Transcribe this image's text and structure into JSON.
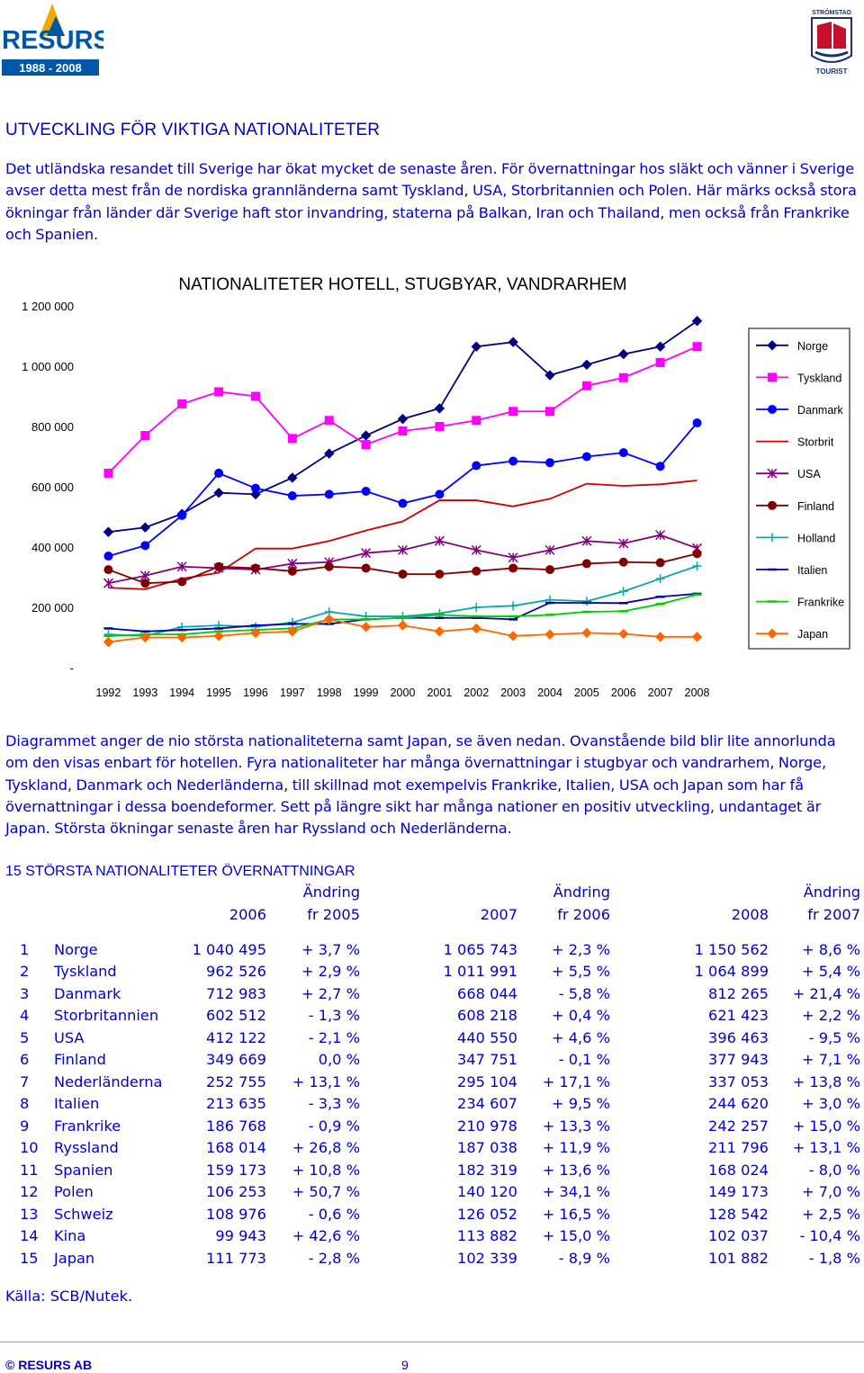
{
  "header": {
    "logo_word": "RESURS",
    "logo_years": "1988 - 2008",
    "right_logo_top": "STRÖMSTAD",
    "right_logo_bottom": "TOURIST"
  },
  "section_title": "UTVECKLING FÖR VIKTIGA NATIONALITETER",
  "intro_text": "Det utländska resandet till Sverige har ökat mycket de senaste åren. För övernattningar hos släkt och vänner i Sverige avser detta mest från de nordiska grannländerna samt Tyskland, USA, Storbritannien och Polen. Här märks också stora ökningar från länder där Sverige haft stor invandring, staterna på Balkan, Iran och Thailand, men också från Frankrike och Spanien.",
  "chart_data": {
    "type": "line",
    "title": "NATIONALITETER HOTELL, STUGBYAR, VANDRARHEM",
    "xlabel": "",
    "ylabel": "",
    "x": [
      "1992",
      "1993",
      "1994",
      "1995",
      "1996",
      "1997",
      "1998",
      "1999",
      "2000",
      "2001",
      "2002",
      "2003",
      "2004",
      "2005",
      "2006",
      "2007",
      "2008"
    ],
    "ylim": [
      0,
      1200000
    ],
    "yticks": [
      0,
      200000,
      400000,
      600000,
      800000,
      1000000,
      1200000
    ],
    "ytick_labels": [
      "-",
      "200 000",
      "400 000",
      "600 000",
      "800 000",
      "1 000 000",
      "1 200 000"
    ],
    "legend_position": "right",
    "series": [
      {
        "name": "Norge",
        "color": "#000080",
        "marker": "diamond",
        "values": [
          450000,
          465000,
          510000,
          580000,
          575000,
          630000,
          710000,
          770000,
          825000,
          860000,
          1065000,
          1080000,
          970000,
          1005000,
          1040000,
          1065000,
          1150000
        ]
      },
      {
        "name": "Tyskland",
        "color": "#ff00ff",
        "marker": "square",
        "values": [
          645000,
          770000,
          875000,
          915000,
          900000,
          760000,
          820000,
          740000,
          785000,
          800000,
          820000,
          850000,
          850000,
          935000,
          962000,
          1012000,
          1065000
        ]
      },
      {
        "name": "Danmark",
        "color": "#0000ff",
        "marker": "triangle",
        "values": [
          370000,
          405000,
          505000,
          645000,
          595000,
          570000,
          575000,
          585000,
          545000,
          575000,
          670000,
          685000,
          680000,
          700000,
          713000,
          668000,
          812000
        ]
      },
      {
        "name": "Storbrit",
        "color": "#cc0000",
        "marker": "none",
        "values": [
          265000,
          260000,
          295000,
          315000,
          395000,
          395000,
          420000,
          455000,
          485000,
          555000,
          555000,
          535000,
          560000,
          610000,
          603000,
          608000,
          621000
        ]
      },
      {
        "name": "USA",
        "color": "#800080",
        "marker": "x",
        "values": [
          280000,
          305000,
          335000,
          330000,
          325000,
          345000,
          350000,
          380000,
          390000,
          420000,
          390000,
          365000,
          390000,
          420000,
          412000,
          440000,
          396000
        ]
      },
      {
        "name": "Finland",
        "color": "#800000",
        "marker": "circle",
        "values": [
          325000,
          280000,
          285000,
          335000,
          330000,
          320000,
          335000,
          330000,
          310000,
          310000,
          320000,
          330000,
          325000,
          345000,
          350000,
          348000,
          378000
        ]
      },
      {
        "name": "Holland",
        "color": "#00aaaa",
        "marker": "plus",
        "values": [
          110000,
          105000,
          135000,
          140000,
          135000,
          150000,
          185000,
          170000,
          170000,
          180000,
          200000,
          205000,
          225000,
          220000,
          253000,
          295000,
          337000
        ]
      },
      {
        "name": "Italien",
        "color": "#0000aa",
        "marker": "dash",
        "values": [
          130000,
          120000,
          125000,
          130000,
          140000,
          145000,
          145000,
          160000,
          165000,
          165000,
          165000,
          160000,
          215000,
          215000,
          214000,
          235000,
          245000
        ]
      },
      {
        "name": "Frankrike",
        "color": "#00cc00",
        "marker": "dash",
        "values": [
          105000,
          110000,
          110000,
          120000,
          125000,
          130000,
          160000,
          160000,
          165000,
          175000,
          170000,
          170000,
          175000,
          185000,
          187000,
          211000,
          242000
        ]
      },
      {
        "name": "Japan",
        "color": "#ff6600",
        "marker": "diamond",
        "values": [
          85000,
          100000,
          100000,
          105000,
          115000,
          120000,
          160000,
          135000,
          140000,
          120000,
          130000,
          105000,
          110000,
          115000,
          112000,
          102000,
          102000
        ]
      }
    ]
  },
  "para2_text": "Diagrammet anger de nio största nationaliteterna samt Japan, se även nedan. Ovanstående bild blir lite annorlunda om den visas enbart för hotellen. Fyra nationaliteter har många övernattningar i stugbyar och vandrarhem, Norge, Tyskland, Danmark och Nederländerna, till skillnad mot exempelvis Frankrike, Italien, USA och Japan som har få övernattningar i dessa boendeformer. Sett på längre sikt har många nationer en positiv utveckling, undantaget är Japan. Största ökningar senaste åren har Ryssland och Nederländerna.",
  "table": {
    "title": "15 STÖRSTA NATIONALITETER ÖVERNATTNINGAR",
    "change_label": "Ändring",
    "headers": [
      "2006",
      "fr 2005",
      "2007",
      "fr 2006",
      "2008",
      "fr 2007"
    ],
    "rows": [
      [
        "1",
        "Norge",
        "1 040 495",
        "+ 3,7 %",
        "1 065 743",
        "+ 2,3 %",
        "1 150 562",
        "+ 8,6 %"
      ],
      [
        "2",
        "Tyskland",
        "962 526",
        "+ 2,9 %",
        "1 011 991",
        "+ 5,5 %",
        "1 064 899",
        "+ 5,4 %"
      ],
      [
        "3",
        "Danmark",
        "712 983",
        "+ 2,7 %",
        "668 044",
        "- 5,8 %",
        "812 265",
        "+ 21,4 %"
      ],
      [
        "4",
        "Storbritannien",
        "602 512",
        "- 1,3 %",
        "608 218",
        "+ 0,4 %",
        "621 423",
        "+ 2,2 %"
      ],
      [
        "5",
        "USA",
        "412 122",
        "- 2,1 %",
        "440 550",
        "+ 4,6 %",
        "396 463",
        "- 9,5 %"
      ],
      [
        "6",
        "Finland",
        "349 669",
        "0,0 %",
        "347 751",
        "- 0,1 %",
        "377 943",
        "+ 7,1 %"
      ],
      [
        "7",
        "Nederländerna",
        "252 755",
        "+ 13,1 %",
        "295 104",
        "+ 17,1 %",
        "337 053",
        "+ 13,8 %"
      ],
      [
        "8",
        "Italien",
        "213 635",
        "- 3,3 %",
        "234 607",
        "+ 9,5 %",
        "244 620",
        "+ 3,0 %"
      ],
      [
        "9",
        "Frankrike",
        "186 768",
        "- 0,9 %",
        "210 978",
        "+ 13,3 %",
        "242 257",
        "+ 15,0 %"
      ],
      [
        "10",
        "Ryssland",
        "168 014",
        "+ 26,8 %",
        "187 038",
        "+ 11,9 %",
        "211 796",
        "+ 13,1 %"
      ],
      [
        "11",
        "Spanien",
        "159 173",
        "+ 10,8 %",
        "182 319",
        "+ 13,6 %",
        "168 024",
        "- 8,0 %"
      ],
      [
        "12",
        "Polen",
        "106 253",
        "+ 50,7 %",
        "140 120",
        "+ 34,1 %",
        "149 173",
        "+ 7,0 %"
      ],
      [
        "13",
        "Schweiz",
        "108 976",
        "- 0,6 %",
        "126 052",
        "+ 16,5 %",
        "128 542",
        "+ 2,5 %"
      ],
      [
        "14",
        "Kina",
        "99 943",
        "+ 42,6 %",
        "113 882",
        "+ 15,0 %",
        "102 037",
        "- 10,4 %"
      ],
      [
        "15",
        "Japan",
        "111 773",
        "- 2,8 %",
        "102 339",
        "- 8,9 %",
        "101 882",
        "- 1,8 %"
      ]
    ]
  },
  "source": "Källa: SCB/Nutek.",
  "footer": {
    "copyright": "© RESURS AB",
    "page": "9"
  }
}
